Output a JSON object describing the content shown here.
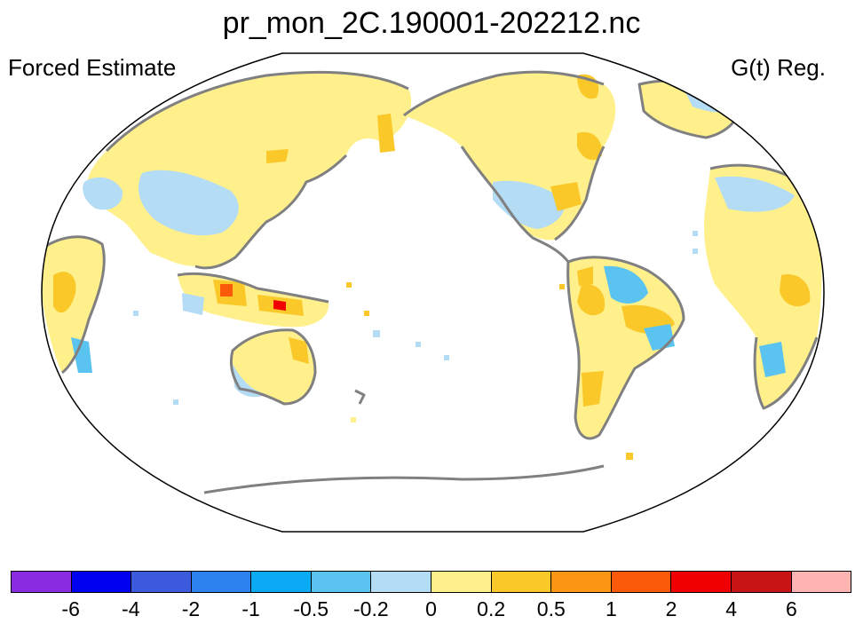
{
  "title": "pr_mon_2C.190001-202212.nc",
  "left_label": "Forced Estimate",
  "right_label": "G(t) Reg.",
  "map": {
    "projection": "robinson",
    "central_longitude": 180,
    "variable": "pr",
    "coastline_color": "#808080",
    "ocean_color": "#ffffff"
  },
  "colorbar": {
    "colors": [
      "#8a2be2",
      "#0000f0",
      "#3c5adc",
      "#2d82f0",
      "#0aaaf5",
      "#5ac3f0",
      "#b4dcf5",
      "#fff08c",
      "#fac828",
      "#fa9614",
      "#fa5a0a",
      "#f00000",
      "#c81414",
      "#ffb4b4"
    ],
    "tick_labels": [
      "-6",
      "-4",
      "-2",
      "-1",
      "-0.5",
      "-0.2",
      "0",
      "0.2",
      "0.5",
      "1",
      "2",
      "4",
      "6"
    ]
  }
}
